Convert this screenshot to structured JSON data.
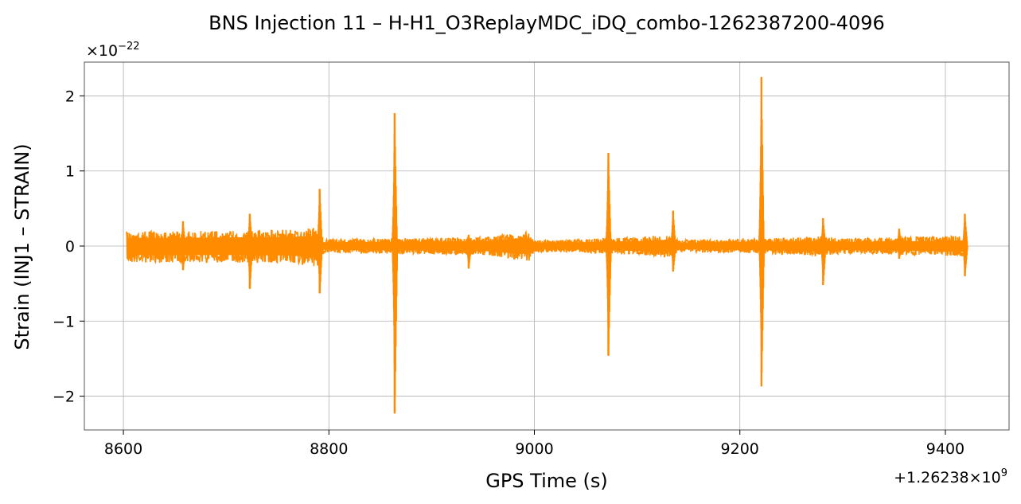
{
  "chart_data": {
    "type": "line",
    "title": "BNS Injection 11 – H-H1_O3ReplayMDC_iDQ_combo-1262387200-4096",
    "xlabel": "GPS Time (s)",
    "ylabel": "Strain (INJ1 – STRAIN)",
    "x_offset_label": "+1.26238×10",
    "x_offset_exponent": "9",
    "y_scale_label": "×10",
    "y_scale_exponent": "−22",
    "xlim": [
      8562,
      9462
    ],
    "ylim": [
      -2.45,
      2.45
    ],
    "x_ticks": [
      8600,
      8800,
      9000,
      9200,
      9400
    ],
    "x_tick_labels": [
      "8600",
      "8800",
      "9000",
      "9200",
      "9400"
    ],
    "y_ticks": [
      2,
      1,
      0,
      -1,
      -2
    ],
    "y_tick_labels": [
      "2",
      "1",
      "0",
      "−1",
      "−2"
    ],
    "grid": true,
    "line_color": "#ff8c00",
    "x_range": [
      8603,
      9421
    ],
    "noise_envelope": [
      {
        "x": 8603,
        "upper": 0.2,
        "lower": -0.22
      },
      {
        "x": 8650,
        "upper": 0.2,
        "lower": -0.22
      },
      {
        "x": 8700,
        "upper": 0.21,
        "lower": -0.22
      },
      {
        "x": 8760,
        "upper": 0.22,
        "lower": -0.23
      },
      {
        "x": 8790,
        "upper": 0.25,
        "lower": -0.28
      },
      {
        "x": 8795,
        "upper": 0.09,
        "lower": -0.09
      },
      {
        "x": 8850,
        "upper": 0.1,
        "lower": -0.1
      },
      {
        "x": 8950,
        "upper": 0.12,
        "lower": -0.12
      },
      {
        "x": 8995,
        "upper": 0.2,
        "lower": -0.2
      },
      {
        "x": 9000,
        "upper": 0.08,
        "lower": -0.08
      },
      {
        "x": 9050,
        "upper": 0.09,
        "lower": -0.09
      },
      {
        "x": 9065,
        "upper": 0.1,
        "lower": -0.1
      },
      {
        "x": 9100,
        "upper": 0.12,
        "lower": -0.12
      },
      {
        "x": 9133,
        "upper": 0.16,
        "lower": -0.15
      },
      {
        "x": 9140,
        "upper": 0.08,
        "lower": -0.08
      },
      {
        "x": 9220,
        "upper": 0.1,
        "lower": -0.1
      },
      {
        "x": 9280,
        "upper": 0.13,
        "lower": -0.13
      },
      {
        "x": 9300,
        "upper": 0.1,
        "lower": -0.1
      },
      {
        "x": 9400,
        "upper": 0.13,
        "lower": -0.13
      },
      {
        "x": 9421,
        "upper": 0.14,
        "lower": -0.14
      }
    ],
    "spikes": [
      {
        "x": 8658,
        "max": 0.33,
        "min": -0.32
      },
      {
        "x": 8723,
        "max": 0.43,
        "min": -0.57
      },
      {
        "x": 8791,
        "max": 0.76,
        "min": -0.63
      },
      {
        "x": 8864,
        "max": 1.77,
        "min": -2.23
      },
      {
        "x": 8936,
        "max": 0.15,
        "min": -0.3
      },
      {
        "x": 9072,
        "max": 1.24,
        "min": -1.46
      },
      {
        "x": 9135,
        "max": 0.47,
        "min": -0.34
      },
      {
        "x": 9221,
        "max": 2.25,
        "min": -1.87
      },
      {
        "x": 9281,
        "max": 0.37,
        "min": -0.52
      },
      {
        "x": 9355,
        "max": 0.23,
        "min": -0.17
      },
      {
        "x": 9419,
        "max": 0.43,
        "min": -0.4
      }
    ]
  }
}
